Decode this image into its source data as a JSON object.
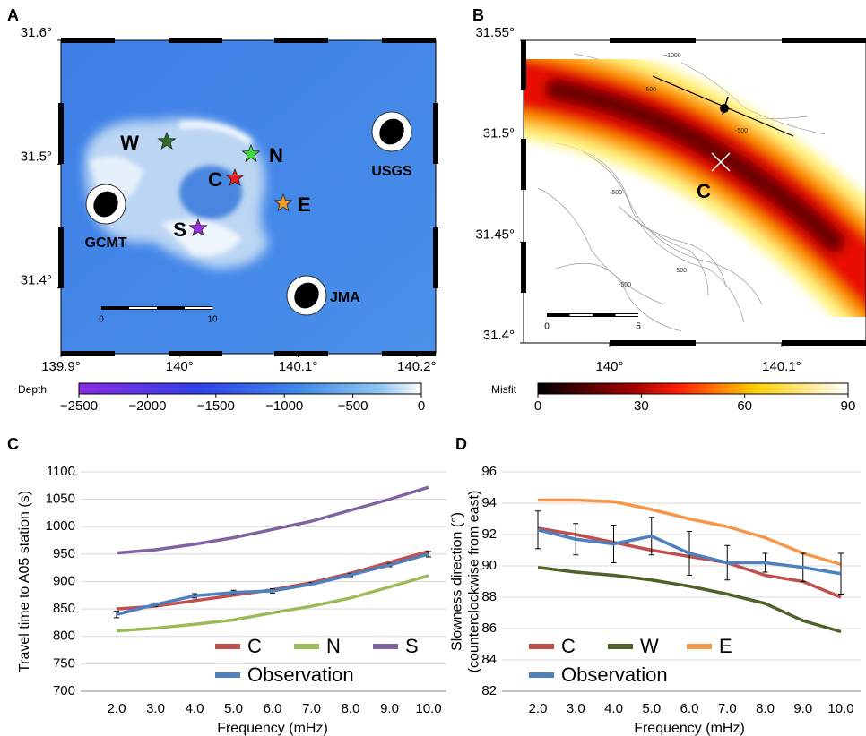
{
  "maps": [
    {
      "letter": "A",
      "xlim": [
        139.9,
        140.216
      ],
      "ylim": [
        31.347,
        31.6
      ],
      "xticks": [
        {
          "value": 139.9,
          "label": "139.9°"
        },
        {
          "value": 140,
          "label": "140°"
        },
        {
          "value": 140.1,
          "label": "140.1°"
        },
        {
          "value": 140.2,
          "label": "140.2°"
        }
      ],
      "yticks": [
        {
          "value": 31.6,
          "label": "31.6°"
        },
        {
          "value": 31.5,
          "label": "31.5°"
        },
        {
          "value": 31.4,
          "label": "31.4°"
        }
      ],
      "stations": [
        {
          "name": "W",
          "color": "#2e6b2a"
        },
        {
          "name": "N",
          "color": "#3ddc3a"
        },
        {
          "name": "C",
          "color": "#e8201f"
        },
        {
          "name": "E",
          "color": "#f39a2a"
        },
        {
          "name": "S",
          "color": "#9a2fe0"
        }
      ],
      "mechanisms": [
        "GCMT",
        "USGS",
        "JMA"
      ],
      "scale_bar": [
        0,
        10
      ],
      "colorbar": {
        "title": "Depth",
        "lim": [
          -2500,
          0
        ],
        "ticks": [
          {
            "value": -2500,
            "label": "−2500"
          },
          {
            "value": -2000,
            "label": "−2000"
          },
          {
            "value": -1500,
            "label": "−1500"
          },
          {
            "value": -1000,
            "label": "−1000"
          },
          {
            "value": -500,
            "label": "−500"
          },
          0
        ]
      }
    },
    {
      "letter": "B",
      "xlim": [
        139.95,
        140.149
      ],
      "ylim": [
        31.4,
        31.55
      ],
      "xticks": [
        {
          "value": 140,
          "label": "140°"
        },
        {
          "value": 140.1,
          "label": "140.1°"
        }
      ],
      "yticks": [
        {
          "value": 31.55,
          "label": "31.55°"
        },
        {
          "value": 31.5,
          "label": "31.5°"
        },
        {
          "value": 31.45,
          "label": "31.45°"
        },
        {
          "value": 31.4,
          "label": "31.4°"
        }
      ],
      "source_label": "C",
      "contour_labels": [
        "−1000",
        "-500",
        "-500",
        "-500",
        "-500",
        "-500"
      ],
      "scale_bar": [
        0,
        5
      ],
      "colorbar": {
        "title": "Misfit",
        "lim": [
          0,
          90
        ],
        "ticks": [
          0,
          30,
          60,
          90
        ]
      }
    }
  ],
  "chart_data": [
    {
      "type": "line",
      "letter": "C",
      "x_label": "Frequency (mHz)",
      "y_label": [
        "Travel time to A05 station (s)"
      ],
      "categories": [
        "2.0",
        "3.0",
        "4.0",
        "5.0",
        "6.0",
        "7.0",
        "8.0",
        "9.0",
        "10.0"
      ],
      "ylim": [
        700,
        1100
      ],
      "yticks": [
        700,
        750,
        800,
        850,
        900,
        950,
        1000,
        1050,
        1100
      ],
      "grid": true,
      "legend": "lower right",
      "series": [
        {
          "name": "C",
          "color": "#c0504d",
          "values": [
            850,
            855,
            865,
            875,
            885,
            898,
            915,
            935,
            955
          ]
        },
        {
          "name": "N",
          "color": "#9bbb59",
          "values": [
            810,
            815,
            822,
            830,
            843,
            855,
            870,
            890,
            911
          ]
        },
        {
          "name": "S",
          "color": "#8064a2",
          "values": [
            952,
            958,
            968,
            980,
            995,
            1010,
            1030,
            1050,
            1072
          ]
        },
        {
          "name": "Observation",
          "color": "#4f81bd",
          "values": [
            840,
            858,
            874,
            880,
            883,
            895,
            912,
            930,
            950
          ],
          "errors": [
            6,
            3,
            4,
            4,
            4,
            3,
            3,
            3,
            5
          ]
        }
      ]
    },
    {
      "type": "line",
      "letter": "D",
      "x_label": "Frequency (mHz)",
      "y_label": [
        "Slowness direction (°)",
        "(counterclockwise from east)"
      ],
      "categories": [
        "2.0",
        "3.0",
        "4.0",
        "5.0",
        "6.0",
        "7.0",
        "8.0",
        "9.0",
        "10.0"
      ],
      "ylim": [
        82,
        96
      ],
      "yticks": [
        82,
        84,
        86,
        88,
        90,
        92,
        94,
        96
      ],
      "grid": true,
      "legend": "lower left",
      "series": [
        {
          "name": "C",
          "color": "#c0504d",
          "values": [
            92.4,
            92.0,
            91.5,
            91.0,
            90.6,
            90.2,
            89.4,
            89.0,
            88.0
          ]
        },
        {
          "name": "W",
          "color": "#4f6228",
          "values": [
            89.9,
            89.6,
            89.4,
            89.1,
            88.7,
            88.2,
            87.6,
            86.5,
            85.8
          ]
        },
        {
          "name": "E",
          "color": "#f79646",
          "values": [
            94.2,
            94.2,
            94.1,
            93.6,
            93.0,
            92.5,
            91.8,
            90.8,
            90.1
          ]
        },
        {
          "name": "Observation",
          "color": "#4f81bd",
          "values": [
            92.3,
            91.7,
            91.4,
            91.9,
            90.8,
            90.2,
            90.2,
            89.9,
            89.5
          ],
          "errors": [
            1.2,
            1.0,
            1.2,
            1.2,
            1.4,
            1.1,
            0.6,
            0.9,
            1.3
          ]
        }
      ]
    }
  ]
}
